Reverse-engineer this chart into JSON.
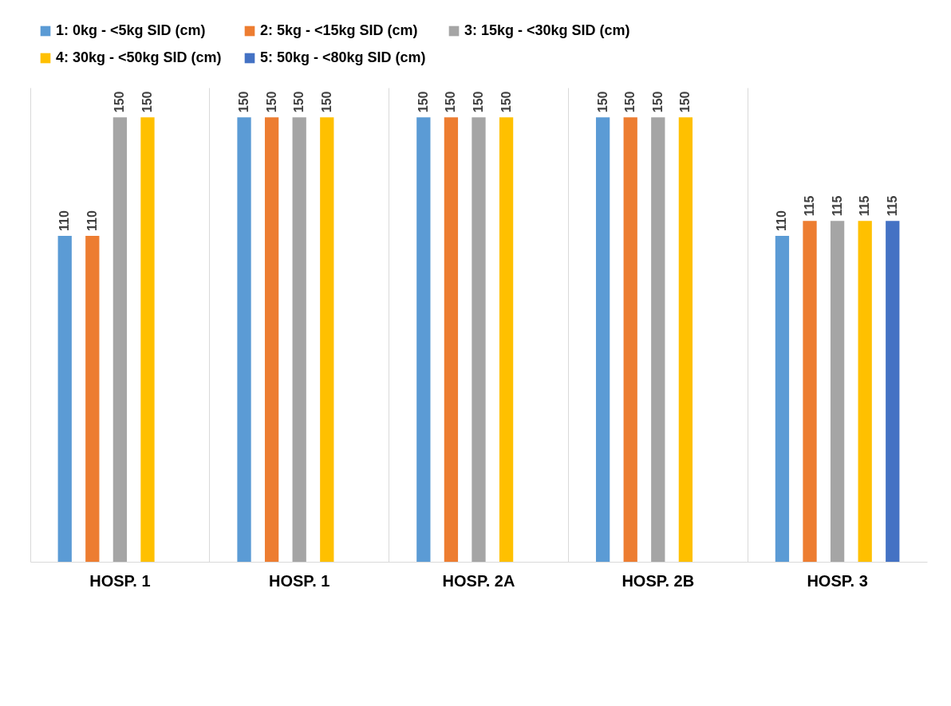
{
  "chart_data": {
    "type": "bar",
    "categories": [
      "HOSP. 1",
      "HOSP. 1",
      "HOSP. 2A",
      "HOSP. 2B",
      "HOSP. 3"
    ],
    "series": [
      {
        "name": "1: 0kg - <5kg SID (cm)",
        "color": "#5b9bd5",
        "values": [
          110,
          150,
          150,
          150,
          110
        ]
      },
      {
        "name": "2: 5kg - <15kg SID (cm)",
        "color": "#ed7d31",
        "values": [
          110,
          150,
          150,
          150,
          115
        ]
      },
      {
        "name": "3: 15kg - <30kg SID (cm)",
        "color": "#a5a5a5",
        "values": [
          150,
          150,
          150,
          150,
          115
        ]
      },
      {
        "name": "4: 30kg - <50kg SID (cm)",
        "color": "#ffc000",
        "values": [
          150,
          150,
          150,
          150,
          115
        ]
      },
      {
        "name": "5: 50kg - <80kg SID (cm)",
        "color": "#4472c4",
        "values": [
          null,
          null,
          null,
          null,
          115
        ]
      }
    ],
    "data_labels": true,
    "legend": "top",
    "grid": "x"
  }
}
